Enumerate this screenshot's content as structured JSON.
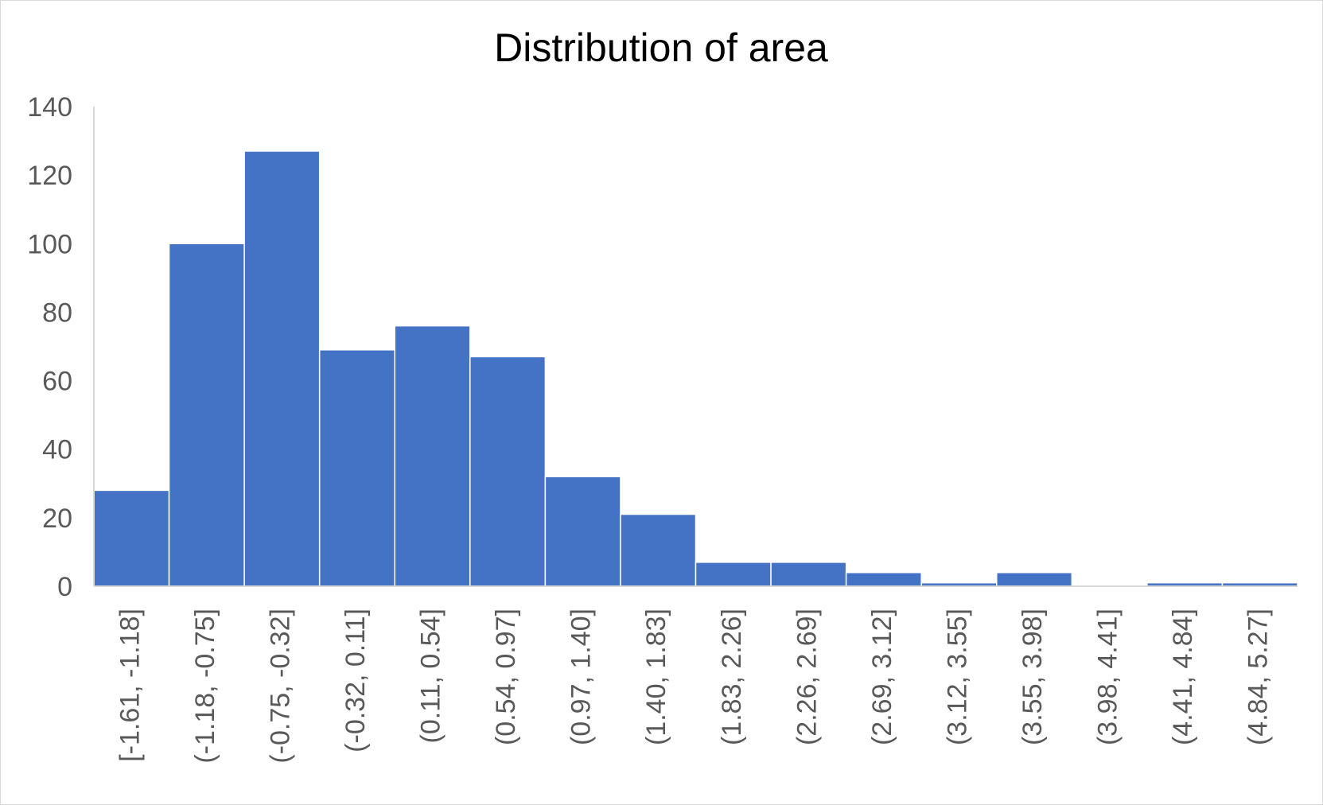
{
  "chart_data": {
    "type": "bar",
    "title": "Distribution of area",
    "xlabel": "",
    "ylabel": "",
    "categories": [
      "[-1.61, -1.18]",
      "(-1.18, -0.75]",
      "(-0.75, -0.32]",
      "(-0.32, 0.11]",
      "(0.11, 0.54]",
      "(0.54, 0.97]",
      "(0.97, 1.40]",
      "(1.40, 1.83]",
      "(1.83, 2.26]",
      "(2.26, 2.69]",
      "(2.69, 3.12]",
      "(3.12, 3.55]",
      "(3.55, 3.98]",
      "(3.98, 4.41]",
      "(4.41, 4.84]",
      "(4.84, 5.27]"
    ],
    "values": [
      28,
      100,
      127,
      69,
      76,
      67,
      32,
      21,
      7,
      7,
      4,
      1,
      4,
      0,
      1,
      1
    ],
    "ylim": [
      0,
      140
    ],
    "yticks": [
      "0",
      "20",
      "40",
      "60",
      "80",
      "100",
      "120",
      "140"
    ],
    "grid": false,
    "legend": "none",
    "bar_color": "#4472C4",
    "axis_color": "#D9D9D9"
  }
}
